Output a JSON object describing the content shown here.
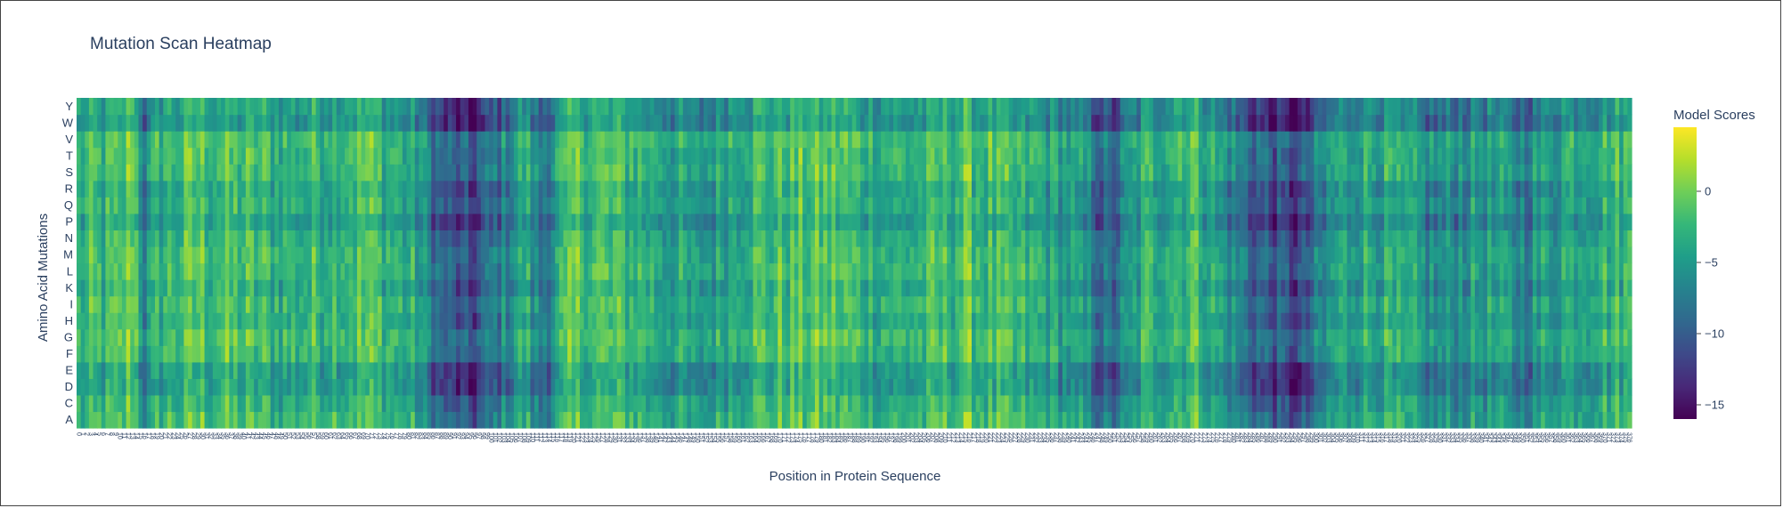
{
  "chart_data": {
    "type": "heatmap",
    "title": "Mutation Scan Heatmap",
    "xlabel": "Position in Protein Sequence",
    "ylabel": "Amino Acid Mutations",
    "y_categories": [
      "A",
      "C",
      "D",
      "E",
      "F",
      "G",
      "H",
      "I",
      "K",
      "L",
      "M",
      "N",
      "P",
      "Q",
      "R",
      "S",
      "T",
      "V",
      "W",
      "Y"
    ],
    "x_range": [
      0,
      376
    ],
    "z_range": [
      -16,
      4.5
    ],
    "colorscale": "Viridis",
    "colorbar": {
      "title": "Model Scores",
      "ticks": [
        0,
        -5,
        -10,
        -15
      ],
      "tick_labels": [
        "0",
        "−5",
        "−10",
        "−15"
      ]
    },
    "position_profile_knots": [
      [
        0,
        -2.5
      ],
      [
        10,
        -2
      ],
      [
        13,
        1
      ],
      [
        16,
        -6
      ],
      [
        20,
        -2
      ],
      [
        30,
        -1
      ],
      [
        50,
        -2.5
      ],
      [
        70,
        -1
      ],
      [
        82,
        -4
      ],
      [
        88,
        -9
      ],
      [
        95,
        -11
      ],
      [
        100,
        -8
      ],
      [
        108,
        -3
      ],
      [
        112,
        -7
      ],
      [
        120,
        -1
      ],
      [
        135,
        -2
      ],
      [
        150,
        -5
      ],
      [
        160,
        -2
      ],
      [
        180,
        -1
      ],
      [
        200,
        -3
      ],
      [
        215,
        -1
      ],
      [
        230,
        -3
      ],
      [
        240,
        -4
      ],
      [
        245,
        -6
      ],
      [
        250,
        -9
      ],
      [
        258,
        -3
      ],
      [
        270,
        -1
      ],
      [
        282,
        -7
      ],
      [
        290,
        -10
      ],
      [
        296,
        -11
      ],
      [
        305,
        -4
      ],
      [
        315,
        -3
      ],
      [
        330,
        -6
      ],
      [
        340,
        -4
      ],
      [
        350,
        -6
      ],
      [
        360,
        -3
      ],
      [
        376,
        -2
      ]
    ],
    "row_offsets": {
      "A": 0,
      "C": -1,
      "D": -3,
      "E": -3,
      "F": 0,
      "G": 0.5,
      "H": -1,
      "I": 0,
      "K": -1.5,
      "L": 0,
      "M": 0,
      "N": -1,
      "P": -3,
      "Q": -1,
      "R": -2,
      "S": 0,
      "T": 0,
      "V": 0.5,
      "W": -4,
      "Y": -3
    }
  }
}
